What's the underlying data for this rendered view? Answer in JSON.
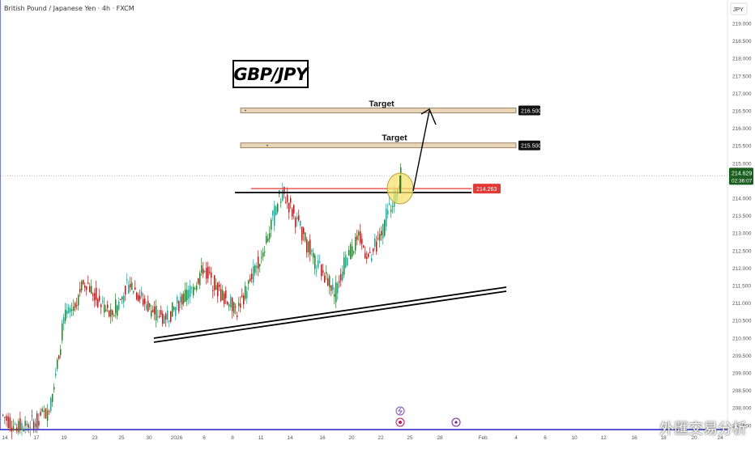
{
  "header": {
    "symbol_title": "British Pound / Japanese Yen · 4h · FXCM",
    "currency_label": "JPY"
  },
  "annotations": {
    "pair_label": "GBP/JPY",
    "target_upper_text": "Target",
    "target_lower_text": "Target",
    "target_upper_price": "216.500",
    "target_lower_price": "215.500",
    "breakout_level_price": "214.263",
    "current_price": "214.629",
    "countdown": "02:36:07"
  },
  "watermark": "外匯交易分析",
  "colors": {
    "bull": "#26a69a",
    "bull_alt": "#2e7d32",
    "bear": "#b71c1c",
    "zone_fill": "#e8d5b9",
    "zone_border": "#8a6d46",
    "level_badge": "#e53935",
    "circle_fill": "#f7e26b",
    "axis_line": "#1e24c8"
  },
  "chart_data": {
    "type": "candlestick",
    "y_axis": {
      "ticks": [
        "219.000",
        "218.500",
        "218.000",
        "217.500",
        "217.000",
        "216.500",
        "216.000",
        "215.500",
        "215.000",
        "214.500",
        "214.000",
        "213.500",
        "213.000",
        "212.500",
        "212.000",
        "211.500",
        "211.000",
        "210.500",
        "210.000",
        "209.500",
        "209.000",
        "208.500",
        "208.000",
        "207.500"
      ],
      "ylim": [
        207.35,
        219.3
      ]
    },
    "x_axis": {
      "tick_labels": [
        "14",
        "17",
        "19",
        "23",
        "25",
        "30",
        "2026",
        "6",
        "8",
        "11",
        "14",
        "16",
        "20",
        "22",
        "25",
        "28",
        "Feb",
        "4",
        "6",
        "10",
        "12",
        "16",
        "18",
        "20",
        "24"
      ]
    },
    "key_levels": [
      216.5,
      215.5,
      214.263
    ],
    "current_price": 214.629,
    "ohlc_approx": {
      "start": 207.8,
      "peak_1": 214.15,
      "swing_low": 210.65,
      "end": 214.629
    }
  }
}
